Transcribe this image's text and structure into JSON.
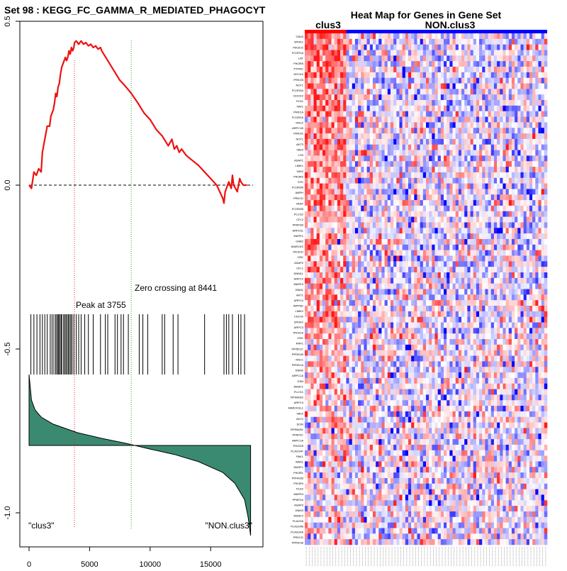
{
  "chart_data": [
    {
      "type": "line",
      "title": "Set  98 : KEGG_FC_GAMMA_R_MEDIATED_PHAGOCYT",
      "x_ticks": [
        0,
        5000,
        10000,
        15000
      ],
      "y_ticks": [
        "0.5",
        "0.0",
        "-0.5",
        "-1.0"
      ],
      "xlim": [
        0,
        18500
      ],
      "ylim": [
        -1.0,
        0.5
      ],
      "peak_label": "Peak at 3755",
      "peak_x": 3755,
      "zero_label": "Zero crossing at 8441",
      "zero_x": 8441,
      "left_class": "\"clus3\"",
      "right_class": "\"NON.clus3\"",
      "colors": {
        "es_line": "#ee1111",
        "peak_line": "#ee2222",
        "zero_line": "#22aa22",
        "ranked_fill": "#3a8a72"
      },
      "es_curve": {
        "x": [
          0,
          200,
          400,
          600,
          800,
          1000,
          1100,
          1200,
          1400,
          1500,
          1700,
          1800,
          1900,
          2000,
          2100,
          2200,
          2300,
          2400,
          2500,
          2600,
          2700,
          2800,
          2900,
          3000,
          3100,
          3200,
          3300,
          3400,
          3500,
          3600,
          3700,
          3755,
          3900,
          4100,
          4300,
          4500,
          4700,
          4900,
          5100,
          5300,
          5500,
          5700,
          5900,
          6000,
          6500,
          7000,
          7500,
          8000,
          8441,
          9000,
          9500,
          10000,
          10500,
          11000,
          11500,
          11800,
          12000,
          12200,
          12400,
          12600,
          12800,
          13000,
          14000,
          15000,
          15500,
          16000,
          16100,
          16200,
          16500,
          16700,
          16800,
          16900,
          17200,
          17400,
          17500,
          17700,
          18000
        ],
        "y": [
          0.0,
          -0.01,
          0.04,
          0.03,
          0.05,
          0.04,
          0.1,
          0.12,
          0.16,
          0.18,
          0.18,
          0.21,
          0.22,
          0.23,
          0.25,
          0.28,
          0.27,
          0.3,
          0.31,
          0.34,
          0.36,
          0.37,
          0.38,
          0.39,
          0.38,
          0.39,
          0.41,
          0.4,
          0.42,
          0.41,
          0.42,
          0.435,
          0.44,
          0.43,
          0.44,
          0.43,
          0.435,
          0.425,
          0.43,
          0.42,
          0.425,
          0.415,
          0.42,
          0.41,
          0.38,
          0.35,
          0.32,
          0.3,
          0.28,
          0.25,
          0.22,
          0.2,
          0.17,
          0.15,
          0.12,
          0.14,
          0.11,
          0.12,
          0.1,
          0.11,
          0.1,
          0.09,
          0.06,
          0.02,
          0.0,
          -0.04,
          -0.055,
          -0.02,
          0.01,
          -0.01,
          0.03,
          0.0,
          -0.02,
          0.02,
          0.01,
          0.0,
          0.0
        ]
      },
      "hit_positions": [
        150,
        400,
        650,
        900,
        1100,
        1300,
        1500,
        1750,
        1900,
        2050,
        2200,
        2300,
        2400,
        2450,
        2550,
        2650,
        2700,
        2850,
        2950,
        3050,
        3150,
        3250,
        3350,
        3450,
        3550,
        3700,
        3900,
        4100,
        4300,
        4600,
        4900,
        5300,
        5900,
        6300,
        6500,
        7100,
        7300,
        7600,
        7800,
        8200,
        9100,
        9400,
        9800,
        11000,
        11200,
        11900,
        12300,
        14500,
        16100,
        16300,
        16500,
        16800,
        17300,
        17500,
        17800
      ],
      "ranked_curve": {
        "x": [
          0,
          200,
          500,
          1000,
          2000,
          3000,
          4000,
          6000,
          8000,
          10000,
          12000,
          14000,
          16000,
          17000,
          17800,
          18100,
          18300
        ],
        "y": [
          1.0,
          0.64,
          0.5,
          0.4,
          0.3,
          0.24,
          0.18,
          0.1,
          0.03,
          -0.04,
          -0.1,
          -0.18,
          -0.3,
          -0.42,
          -0.6,
          -0.8,
          -1.0
        ]
      }
    },
    {
      "type": "heatmap",
      "title": "Heat Map for Genes in Gene Set",
      "groups": [
        {
          "name": "clus3",
          "color": "#ff0000",
          "columns": 14
        },
        {
          "name": "NON.clus3",
          "color": "#0000ff",
          "columns": 68
        }
      ],
      "rows": 92,
      "genes": [
        "CBLB",
        "SPHK1",
        "PIK3CG",
        "FCGR1A",
        "LAT",
        "PIK3R5",
        "PTPRC",
        "MYO10",
        "PRKCB",
        "NCF1",
        "FCGR3A",
        "DOCK2",
        "PLD1",
        "VAV1",
        "PRKCA",
        "FCGR2A",
        "RAC2",
        "ARPC1B",
        "PRKCE",
        "NCF1",
        "AKT3",
        "VAV3",
        "LYN",
        "ASAP1",
        "LIMK1",
        "VAV2",
        "PIK3R2",
        "SYK",
        "FCGR2B",
        "AMPH",
        "PRKCD",
        "VASP",
        "FCGR2B",
        "PLCG2",
        "CFL2",
        "PPAP2B",
        "ARPC5L",
        "MAPK1",
        "GAB2",
        "MARCKS",
        "PIK3CD",
        "CRK",
        "ASAP2",
        "CFL1",
        "DNM1L",
        "ARPC2",
        "MAPK3",
        "DNM1",
        "AKT1",
        "ARPC4",
        "INPP5D",
        "LIMK2",
        "CDC42",
        "SPHK2",
        "ARPC3",
        "PIK3CA",
        "CRK",
        "RAF1",
        "PIP5K1C",
        "PIP5K1B",
        "RAC1",
        "PIP5K1A",
        "DNM2",
        "ARPC1A",
        "GSN",
        "WASF1",
        "PLCG1",
        "RPS6KB2",
        "ARPC3",
        "MARCKSL1",
        "VAV2",
        "AKT2",
        "SCIN",
        "RPS6KB1",
        "PPAP2C",
        "ARPC1A",
        "PIK3CB",
        "PLA2G4F",
        "PAK1",
        "WASL",
        "WASF1",
        "PIK3R1",
        "PIP4K2B",
        "PIK3R3",
        "PLD2",
        "MAPK3",
        "PPAP2A",
        "ASAP3",
        "DNM3",
        "WASF2",
        "PLA2G6",
        "PLA2G4B"
      ],
      "trailing_genes": [
        "PLA2G4A",
        "PRKCG",
        "PIP5K1B"
      ],
      "seed": 98,
      "colors": {
        "high": "#ff1a1a",
        "mid": "#ffffff",
        "low": "#0000ff"
      }
    }
  ]
}
